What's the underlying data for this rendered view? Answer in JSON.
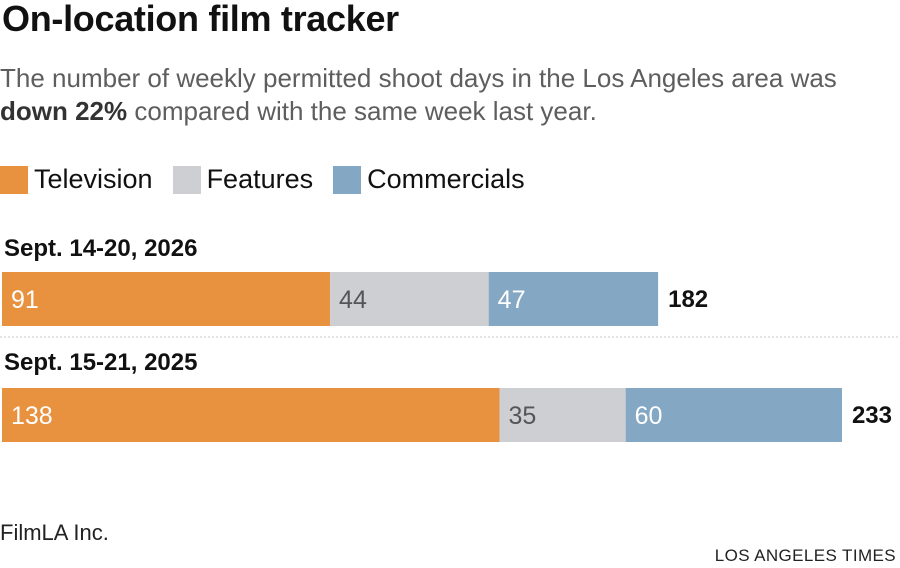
{
  "header": {
    "title": "On-location film tracker",
    "subtitle_pre": "The number of weekly permitted shoot days in the Los Angeles area was ",
    "subtitle_bold": "down 22%",
    "subtitle_post": " compared with the same week last year."
  },
  "colors": {
    "television": "#e8913f",
    "features": "#cdcfd3",
    "commercials": "#84a8c3"
  },
  "chart_data": {
    "type": "bar",
    "orientation": "horizontal-stacked",
    "categories": [
      "Sept. 14-20, 2026",
      "Sept. 15-21, 2025"
    ],
    "series": [
      {
        "name": "Television",
        "values": [
          91,
          138
        ]
      },
      {
        "name": "Features",
        "values": [
          44,
          35
        ]
      },
      {
        "name": "Commercials",
        "values": [
          47,
          60
        ]
      }
    ],
    "totals": [
      182,
      233
    ],
    "legend_position": "top-left",
    "grid": false
  },
  "footer": {
    "source": "FilmLA Inc.",
    "credit": "LOS ANGELES TIMES"
  }
}
